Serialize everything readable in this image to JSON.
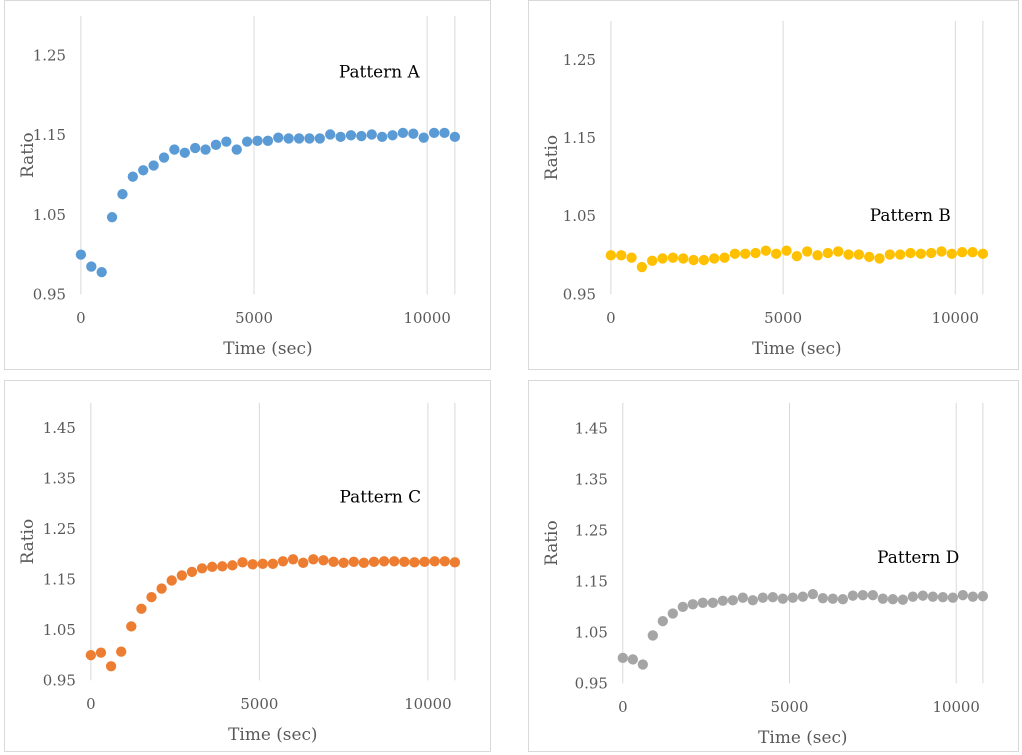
{
  "chart_data": [
    {
      "type": "scatter",
      "annotation": "Pattern A",
      "xlabel": "Time (sec)",
      "ylabel": "Ratio",
      "xlim": [
        0,
        10800
      ],
      "ylim": [
        0.95,
        1.3
      ],
      "xticks": [
        0,
        5000,
        10000
      ],
      "yticks": [
        0.95,
        1.05,
        1.15,
        1.25
      ],
      "color": "#5b9bd5",
      "series": [
        {
          "x": [
            0,
            300,
            600,
            900,
            1200,
            1500,
            1800,
            2100,
            2400,
            2700,
            3000,
            3300,
            3600,
            3900,
            4200,
            4500,
            4800,
            5100,
            5400,
            5700,
            6000,
            6300,
            6600,
            6900,
            7200,
            7500,
            7800,
            8100,
            8400,
            8700,
            9000,
            9300,
            9600,
            9900,
            10200,
            10500,
            10800
          ],
          "y": [
            1.0,
            0.985,
            0.978,
            1.047,
            1.076,
            1.098,
            1.106,
            1.112,
            1.122,
            1.132,
            1.128,
            1.134,
            1.132,
            1.138,
            1.142,
            1.132,
            1.142,
            1.143,
            1.143,
            1.147,
            1.146,
            1.146,
            1.146,
            1.146,
            1.151,
            1.148,
            1.15,
            1.149,
            1.151,
            1.148,
            1.15,
            1.153,
            1.152,
            1.147,
            1.153,
            1.153,
            1.148
          ]
        }
      ]
    },
    {
      "type": "scatter",
      "annotation": "Pattern B",
      "xlabel": "Time (sec)",
      "ylabel": "Ratio",
      "xlim": [
        0,
        10800
      ],
      "ylim": [
        0.95,
        1.3
      ],
      "xticks": [
        0,
        5000,
        10000
      ],
      "yticks": [
        0.95,
        1.05,
        1.15,
        1.25
      ],
      "color": "#ffc000",
      "series": [
        {
          "x": [
            0,
            300,
            600,
            900,
            1200,
            1500,
            1800,
            2100,
            2400,
            2700,
            3000,
            3300,
            3600,
            3900,
            4200,
            4500,
            4800,
            5100,
            5400,
            5700,
            6000,
            6300,
            6600,
            6900,
            7200,
            7500,
            7800,
            8100,
            8400,
            8700,
            9000,
            9300,
            9600,
            9900,
            10200,
            10500,
            10800
          ],
          "y": [
            1.0,
            1.0,
            0.997,
            0.985,
            0.993,
            0.996,
            0.997,
            0.996,
            0.994,
            0.994,
            0.996,
            0.997,
            1.002,
            1.002,
            1.003,
            1.006,
            1.002,
            1.006,
            0.999,
            1.005,
            1.0,
            1.003,
            1.005,
            1.001,
            1.001,
            0.998,
            0.996,
            1.001,
            1.001,
            1.003,
            1.002,
            1.003,
            1.005,
            1.002,
            1.004,
            1.004,
            1.002
          ]
        }
      ]
    },
    {
      "type": "scatter",
      "annotation": "Pattern C",
      "xlabel": "Time (sec)",
      "ylabel": "Ratio",
      "xlim": [
        0,
        10800
      ],
      "ylim": [
        0.95,
        1.5
      ],
      "xticks": [
        0,
        5000,
        10000
      ],
      "yticks": [
        0.95,
        1.05,
        1.15,
        1.25,
        1.35,
        1.45
      ],
      "color": "#ed7d31",
      "series": [
        {
          "x": [
            0,
            300,
            600,
            900,
            1200,
            1500,
            1800,
            2100,
            2400,
            2700,
            3000,
            3300,
            3600,
            3900,
            4200,
            4500,
            4800,
            5100,
            5400,
            5700,
            6000,
            6300,
            6600,
            6900,
            7200,
            7500,
            7800,
            8100,
            8400,
            8700,
            9000,
            9300,
            9600,
            9900,
            10200,
            10500,
            10800
          ],
          "y": [
            1.0,
            1.005,
            0.978,
            1.007,
            1.057,
            1.092,
            1.115,
            1.132,
            1.148,
            1.158,
            1.165,
            1.172,
            1.175,
            1.176,
            1.178,
            1.184,
            1.18,
            1.181,
            1.181,
            1.186,
            1.19,
            1.183,
            1.19,
            1.188,
            1.185,
            1.183,
            1.185,
            1.183,
            1.185,
            1.186,
            1.186,
            1.185,
            1.184,
            1.185,
            1.186,
            1.186,
            1.184
          ]
        }
      ]
    },
    {
      "type": "scatter",
      "annotation": "Pattern D",
      "xlabel": "Time (sec)",
      "ylabel": "Ratio",
      "xlim": [
        0,
        10800
      ],
      "ylim": [
        0.95,
        1.5
      ],
      "xticks": [
        0,
        5000,
        10000
      ],
      "yticks": [
        0.95,
        1.05,
        1.15,
        1.25,
        1.35,
        1.45
      ],
      "color": "#a5a5a5",
      "series": [
        {
          "x": [
            0,
            300,
            600,
            900,
            1200,
            1500,
            1800,
            2100,
            2400,
            2700,
            3000,
            3300,
            3600,
            3900,
            4200,
            4500,
            4800,
            5100,
            5400,
            5700,
            6000,
            6300,
            6600,
            6900,
            7200,
            7500,
            7800,
            8100,
            8400,
            8700,
            9000,
            9300,
            9600,
            9900,
            10200,
            10500,
            10800
          ],
          "y": [
            1.0,
            0.997,
            0.987,
            1.044,
            1.072,
            1.087,
            1.1,
            1.105,
            1.108,
            1.108,
            1.112,
            1.113,
            1.118,
            1.113,
            1.118,
            1.119,
            1.116,
            1.118,
            1.12,
            1.125,
            1.117,
            1.116,
            1.115,
            1.122,
            1.123,
            1.123,
            1.116,
            1.115,
            1.114,
            1.12,
            1.122,
            1.12,
            1.119,
            1.118,
            1.123,
            1.12,
            1.121
          ]
        }
      ]
    }
  ]
}
